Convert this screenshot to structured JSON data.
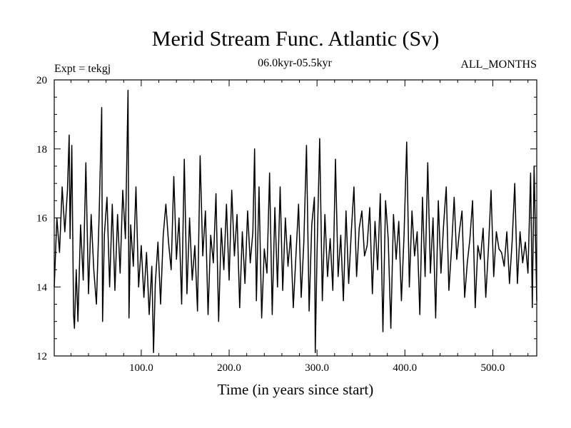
{
  "chart_data": {
    "type": "line",
    "title": "Merid Stream Func. Atlantic (Sv)",
    "subtitle_left": "Expt = tekgj",
    "subtitle_center": "06.0kyr-05.5kyr",
    "subtitle_right": "ALL_MONTHS",
    "xlabel": "Time (in years since start)",
    "ylabel": "",
    "xlim": [
      1,
      550
    ],
    "ylim": [
      12,
      20
    ],
    "x_ticks": [
      100,
      200,
      300,
      400,
      500
    ],
    "x_tick_labels": [
      "100.0",
      "200.0",
      "300.0",
      "400.0",
      "500.0"
    ],
    "y_ticks": [
      12,
      14,
      16,
      18,
      20
    ],
    "y_tick_labels": [
      "12",
      "14",
      "16",
      "18",
      "20"
    ],
    "grid": false,
    "line_color": "#000000",
    "series": [
      {
        "name": "Merid Stream Func. Atlantic",
        "x": [
          1,
          4,
          7,
          10,
          13,
          16,
          18,
          19,
          21,
          23,
          24,
          26,
          28,
          31,
          34,
          37,
          40,
          43,
          46,
          49,
          52,
          55,
          56,
          58,
          61,
          64,
          67,
          70,
          73,
          76,
          79,
          82,
          85,
          86,
          88,
          91,
          94,
          97,
          100,
          103,
          106,
          109,
          112,
          114,
          116,
          119,
          122,
          125,
          128,
          131,
          134,
          137,
          140,
          143,
          146,
          149,
          152,
          155,
          158,
          161,
          164,
          167,
          170,
          173,
          176,
          179,
          182,
          185,
          188,
          191,
          194,
          197,
          200,
          203,
          206,
          209,
          212,
          215,
          218,
          221,
          224,
          227,
          229,
          231,
          234,
          237,
          240,
          243,
          246,
          249,
          252,
          255,
          258,
          261,
          264,
          267,
          270,
          273,
          276,
          279,
          282,
          285,
          288,
          291,
          294,
          297,
          298,
          300,
          303,
          306,
          309,
          312,
          315,
          318,
          321,
          324,
          327,
          330,
          333,
          336,
          339,
          342,
          345,
          348,
          351,
          354,
          357,
          360,
          363,
          366,
          369,
          372,
          375,
          378,
          381,
          384,
          387,
          390,
          393,
          396,
          399,
          402,
          405,
          408,
          411,
          414,
          417,
          420,
          423,
          426,
          429,
          432,
          435,
          438,
          441,
          444,
          447,
          450,
          453,
          456,
          459,
          462,
          465,
          468,
          471,
          474,
          477,
          480,
          483,
          486,
          489,
          492,
          495,
          498,
          501,
          504,
          507,
          510,
          513,
          516,
          519,
          522,
          525,
          528,
          531,
          534,
          537,
          540,
          543,
          545,
          547,
          550
        ],
        "y": [
          14.0,
          16.0,
          15.0,
          16.9,
          15.6,
          16.8,
          18.4,
          15.4,
          18.1,
          13.2,
          12.8,
          14.5,
          13.0,
          15.8,
          14.2,
          17.6,
          13.8,
          16.1,
          14.5,
          13.5,
          16.0,
          19.2,
          13.0,
          15.5,
          16.6,
          14.0,
          16.4,
          13.9,
          16.1,
          14.4,
          16.8,
          15.4,
          19.7,
          13.1,
          15.8,
          14.6,
          16.9,
          14.0,
          15.2,
          13.7,
          15.0,
          13.2,
          14.6,
          12.1,
          14.1,
          15.3,
          13.5,
          15.5,
          16.4,
          15.3,
          14.5,
          17.2,
          14.8,
          16.0,
          13.5,
          17.7,
          13.8,
          16.0,
          14.2,
          15.2,
          13.3,
          17.8,
          14.9,
          16.2,
          13.2,
          15.5,
          14.7,
          16.7,
          13.0,
          15.7,
          14.5,
          16.4,
          14.2,
          16.8,
          14.9,
          16.1,
          13.4,
          15.6,
          14.1,
          16.2,
          14.7,
          15.6,
          18.0,
          13.6,
          16.9,
          13.1,
          15.1,
          14.4,
          17.3,
          13.2,
          16.3,
          14.0,
          16.9,
          13.9,
          16.0,
          14.6,
          15.5,
          13.4,
          14.9,
          16.4,
          13.7,
          15.3,
          18.1,
          13.3,
          15.8,
          16.6,
          12.1,
          15.0,
          18.3,
          13.6,
          16.1,
          14.3,
          15.4,
          13.9,
          17.7,
          14.3,
          15.5,
          13.6,
          16.2,
          14.1,
          15.6,
          16.9,
          14.3,
          15.7,
          16.2,
          14.9,
          15.2,
          16.3,
          13.8,
          15.9,
          14.5,
          16.7,
          12.7,
          16.5,
          15.4,
          12.8,
          16.1,
          14.8,
          15.9,
          13.6,
          15.5,
          18.2,
          14.0,
          16.2,
          14.9,
          15.6,
          13.2,
          16.6,
          14.3,
          17.6,
          14.4,
          16.0,
          13.1,
          16.5,
          14.4,
          15.8,
          16.9,
          13.9,
          15.1,
          16.6,
          14.8,
          15.6,
          16.2,
          13.7,
          14.7,
          15.4,
          16.5,
          13.4,
          15.2,
          14.8,
          15.7,
          13.7,
          15.1,
          16.8,
          14.3,
          15.6,
          15.1,
          15.0,
          14.6,
          15.6,
          14.1,
          15.3,
          17.0,
          14.1,
          15.6,
          14.7,
          15.3,
          14.4,
          17.3,
          13.4,
          17.5,
          13.6
        ]
      }
    ]
  }
}
